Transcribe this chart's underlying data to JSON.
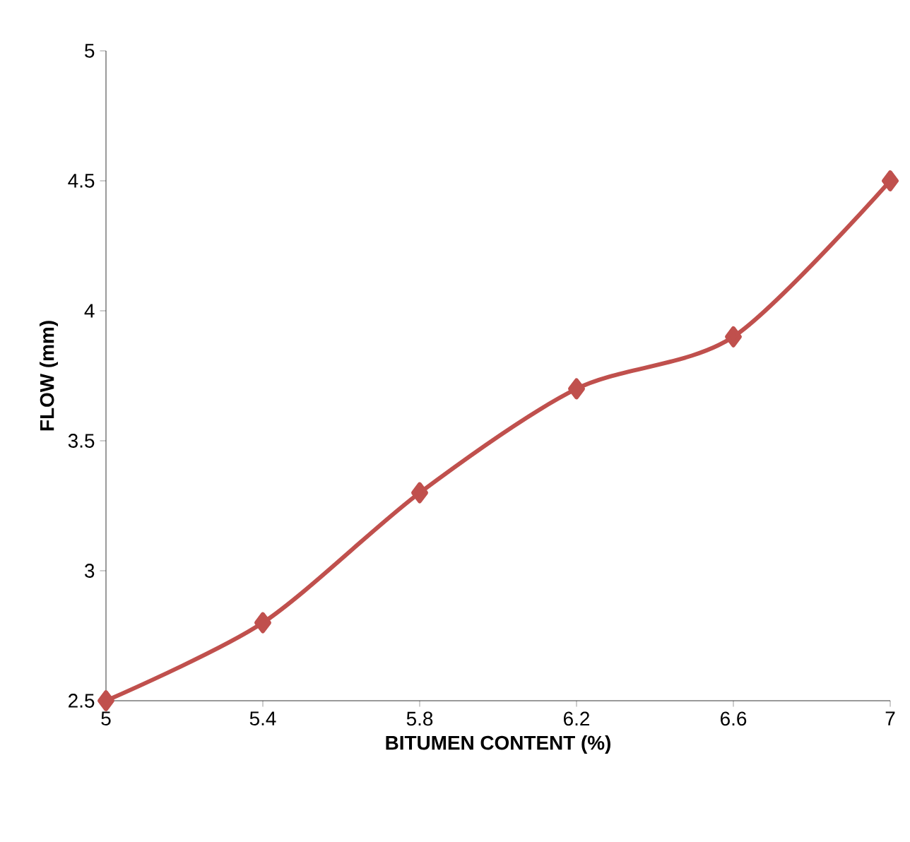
{
  "chart_data": {
    "type": "line",
    "xlabel": "BITUMEN CONTENT (%)",
    "ylabel": "FLOW (mm)",
    "x": [
      5,
      5.4,
      5.8,
      6.2,
      6.6,
      7
    ],
    "series": [
      {
        "color": "#c0504d",
        "values": [
          2.5,
          2.8,
          3.3,
          3.7,
          3.9,
          4.5
        ]
      }
    ],
    "xlim": [
      5,
      7
    ],
    "xticks": [
      5,
      5.4,
      5.8,
      6.2,
      6.6,
      7
    ],
    "ylim": [
      2.5,
      5
    ],
    "yticks": [
      2.5,
      3,
      3.5,
      4,
      4.5,
      5
    ],
    "marker": "diamond",
    "line_style": "solid",
    "grid": false
  }
}
